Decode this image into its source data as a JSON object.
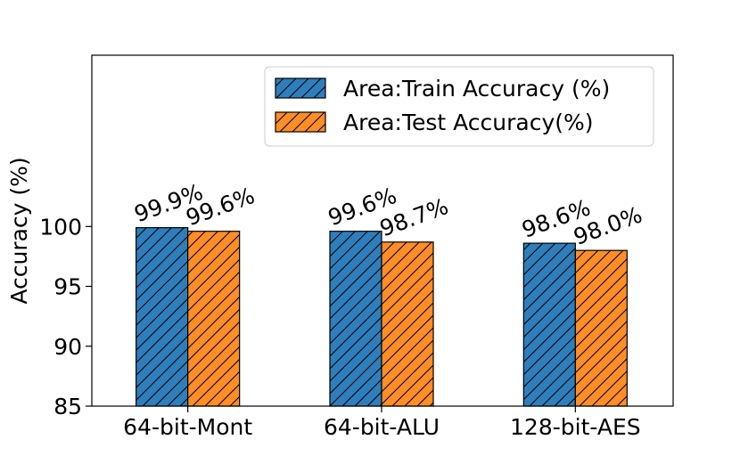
{
  "chart_data": {
    "type": "bar",
    "categories": [
      "64-bit-Mont",
      "64-bit-ALU",
      "128-bit-AES"
    ],
    "series": [
      {
        "name": "Area:Train Accuracy (%)",
        "values": [
          99.9,
          99.6,
          98.6
        ],
        "labels": [
          "99.9%",
          "99.6%",
          "98.6%"
        ],
        "color": "#2e7ebc"
      },
      {
        "name": "Area:Test Accuracy(%)",
        "values": [
          99.6,
          98.7,
          98.0
        ],
        "labels": [
          "99.6%",
          "98.7%",
          "98.0%"
        ],
        "color": "#fd8d27"
      }
    ],
    "ylabel": "Accuracy (%)",
    "xlabel": "",
    "ylim": [
      85,
      114.3
    ],
    "yticks": [
      85,
      90,
      95,
      100
    ],
    "grid": false,
    "legend_position": "top-right",
    "hatch": "diagonal"
  }
}
